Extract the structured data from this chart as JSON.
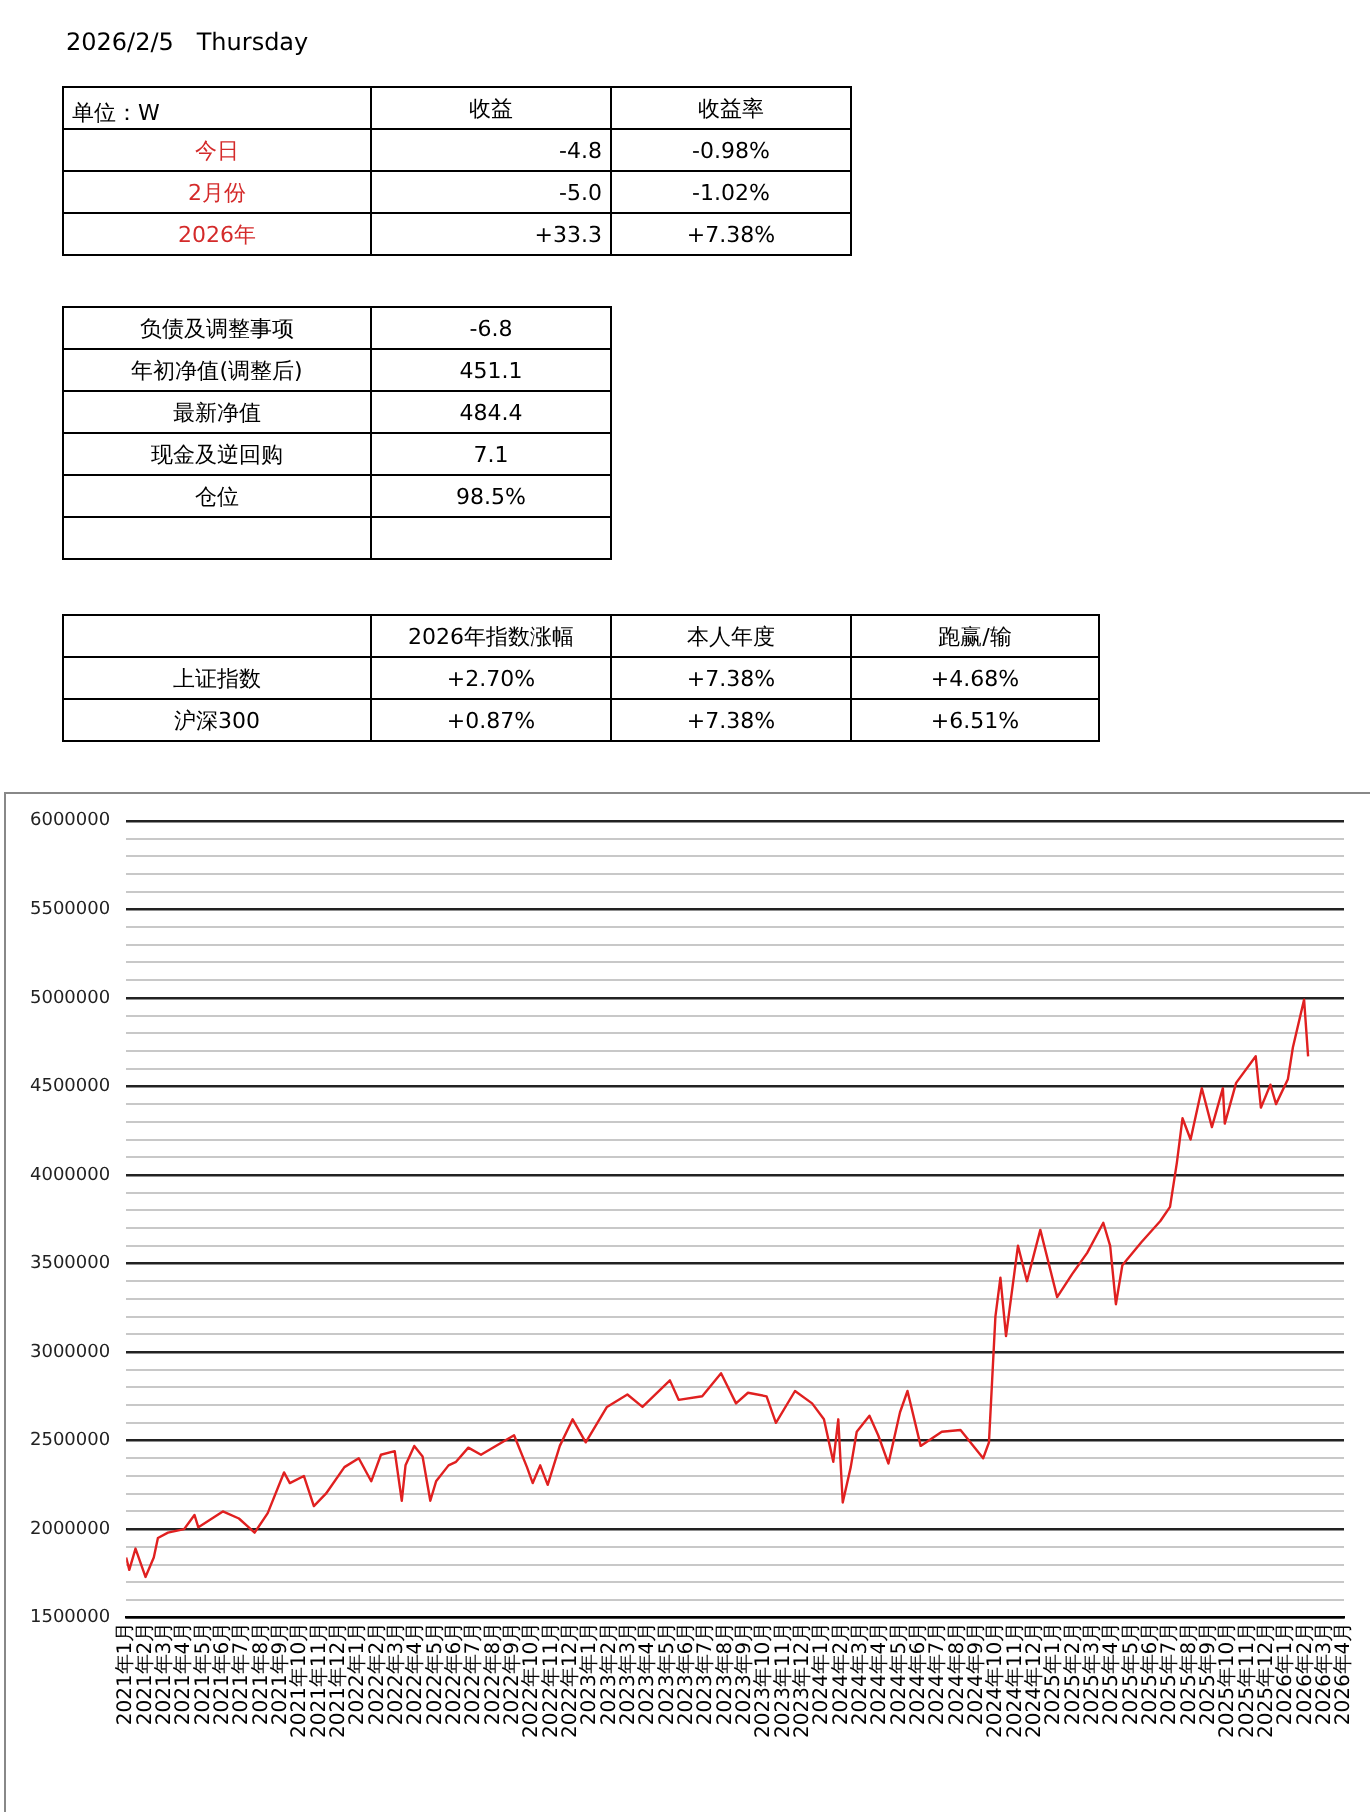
{
  "chart_data": [
    {
      "type": "other",
      "title": "2026/2/5   Thursday",
      "categories": [
        "单位：W",
        "收益",
        "收益率"
      ],
      "y_categories": [
        "今日",
        "2月份",
        "2026年"
      ],
      "color": "#d42a2a",
      "cell_labels": [
        [
          "-4.8",
          "-0.98%"
        ],
        [
          "-5.0",
          "-1.02%"
        ],
        [
          "+33.3",
          "+7.38%"
        ]
      ]
    },
    {
      "type": "other",
      "y_categories": [
        "负债及调整事项",
        "年初净值(调整后)",
        "最新净值",
        "现金及逆回购",
        "仓位",
        null
      ],
      "cell_labels": [
        [
          "-6.8"
        ],
        [
          "451.1"
        ],
        [
          "484.4"
        ],
        [
          "7.1"
        ],
        [
          "98.5%"
        ],
        [
          null
        ]
      ]
    },
    {
      "type": "other",
      "categories": [
        null,
        "2026年指数涨幅",
        "本人年度",
        "跑赢/输"
      ],
      "y_categories": [
        "上证指数",
        "沪深300"
      ],
      "cell_labels": [
        [
          "+2.70%",
          "+7.38%",
          "+4.68%"
        ],
        [
          "+0.87%",
          "+7.38%",
          "+6.51%"
        ]
      ]
    },
    {
      "type": "line",
      "color": "#e02020",
      "grid": "y",
      "legend": false,
      "marker": "none",
      "line_style": "solid",
      "x": [
        "2021-01-01",
        "2021-01-06",
        "2021-01-16",
        "2021-02-01",
        "2021-02-13",
        "2021-02-19",
        "2021-03-06",
        "2021-04-01",
        "2021-04-17",
        "2021-04-23",
        "2021-06-01",
        "2021-06-26",
        "2021-07-21",
        "2021-08-11",
        "2021-09-06",
        "2021-09-15",
        "2021-10-07",
        "2021-10-23",
        "2021-11-11",
        "2021-12-10",
        "2022-01-02",
        "2022-01-22",
        "2022-02-06",
        "2022-02-26",
        "2022-03-09",
        "2022-03-15",
        "2022-03-29",
        "2022-04-11",
        "2022-04-23",
        "2022-05-02",
        "2022-05-22",
        "2022-06-03",
        "2022-06-22",
        "2022-07-12",
        "2022-09-03",
        "2022-09-23",
        "2022-10-02",
        "2022-10-14",
        "2022-10-26",
        "2022-11-14",
        "2022-12-04",
        "2022-12-25",
        "2023-01-28",
        "2023-02-27",
        "2023-03-23",
        "2023-05-05",
        "2023-05-19",
        "2023-06-25",
        "2023-07-25",
        "2023-08-18",
        "2023-09-06",
        "2023-10-05",
        "2023-10-20",
        "2023-11-19",
        "2023-12-16",
        "2024-01-04",
        "2024-01-19",
        "2024-01-27",
        "2024-02-03",
        "2024-02-15",
        "2024-02-24",
        "2024-03-15",
        "2024-03-29",
        "2024-04-14",
        "2024-05-02",
        "2024-05-14",
        "2024-06-04",
        "2024-07-07",
        "2024-08-06",
        "2024-09-11",
        "2024-09-20",
        "2024-09-30",
        "2024-10-08",
        "2024-10-17",
        "2024-11-05",
        "2024-11-19",
        "2024-12-10",
        "2025-01-06",
        "2025-01-30",
        "2025-02-21",
        "2025-03-18",
        "2025-03-29",
        "2025-04-07",
        "2025-04-17",
        "2025-05-17",
        "2025-06-16",
        "2025-07-01",
        "2025-07-12",
        "2025-07-21",
        "2025-08-03",
        "2025-08-21",
        "2025-09-06",
        "2025-09-23",
        "2025-09-26",
        "2025-10-14",
        "2025-11-14",
        "2025-11-22",
        "2025-12-07",
        "2025-12-16",
        "2026-01-04",
        "2026-01-12",
        "2026-01-30",
        "2026-02-05"
      ],
      "values": [
        1840000,
        1770000,
        1890000,
        1730000,
        1840000,
        1950000,
        1980000,
        2000000,
        2080000,
        2010000,
        2100000,
        2060000,
        1980000,
        2090000,
        2320000,
        2260000,
        2300000,
        2130000,
        2200000,
        2350000,
        2400000,
        2270000,
        2420000,
        2440000,
        2160000,
        2360000,
        2470000,
        2410000,
        2160000,
        2270000,
        2360000,
        2380000,
        2460000,
        2420000,
        2530000,
        2350000,
        2260000,
        2360000,
        2250000,
        2470000,
        2620000,
        2490000,
        2690000,
        2760000,
        2690000,
        2840000,
        2730000,
        2750000,
        2880000,
        2710000,
        2770000,
        2750000,
        2600000,
        2780000,
        2710000,
        2620000,
        2380000,
        2620000,
        2150000,
        2350000,
        2550000,
        2640000,
        2530000,
        2370000,
        2660000,
        2780000,
        2470000,
        2550000,
        2560000,
        2400000,
        2490000,
        3200000,
        3420000,
        3090000,
        3600000,
        3400000,
        3690000,
        3310000,
        3440000,
        3560000,
        3730000,
        3600000,
        3270000,
        3490000,
        3620000,
        3740000,
        3820000,
        4070000,
        4320000,
        4200000,
        4490000,
        4270000,
        4490000,
        4290000,
        4520000,
        4670000,
        4380000,
        4510000,
        4400000,
        4540000,
        4720000,
        4990000,
        4670000
      ],
      "xlim": [
        "2021-01-01",
        "2026-04-01"
      ],
      "xticks": [
        {
          "value": "2021-01-01",
          "label": "2021年1月"
        },
        {
          "value": "2021-02-01",
          "label": "2021年2月"
        },
        {
          "value": "2021-03-01",
          "label": "2021年3月"
        },
        {
          "value": "2021-04-01",
          "label": "2021年4月"
        },
        {
          "value": "2021-05-01",
          "label": "2021年5月"
        },
        {
          "value": "2021-06-01",
          "label": "2021年6月"
        },
        {
          "value": "2021-07-01",
          "label": "2021年7月"
        },
        {
          "value": "2021-08-01",
          "label": "2021年8月"
        },
        {
          "value": "2021-09-01",
          "label": "2021年9月"
        },
        {
          "value": "2021-10-01",
          "label": "2021年10月"
        },
        {
          "value": "2021-11-01",
          "label": "2021年11月"
        },
        {
          "value": "2021-12-01",
          "label": "2021年12月"
        },
        {
          "value": "2022-01-01",
          "label": "2022年1月"
        },
        {
          "value": "2022-02-01",
          "label": "2022年2月"
        },
        {
          "value": "2022-03-01",
          "label": "2022年3月"
        },
        {
          "value": "2022-04-01",
          "label": "2022年4月"
        },
        {
          "value": "2022-05-01",
          "label": "2022年5月"
        },
        {
          "value": "2022-06-01",
          "label": "2022年6月"
        },
        {
          "value": "2022-07-01",
          "label": "2022年7月"
        },
        {
          "value": "2022-08-01",
          "label": "2022年8月"
        },
        {
          "value": "2022-09-01",
          "label": "2022年9月"
        },
        {
          "value": "2022-10-01",
          "label": "2022年10月"
        },
        {
          "value": "2022-11-01",
          "label": "2022年11月"
        },
        {
          "value": "2022-12-01",
          "label": "2022年12月"
        },
        {
          "value": "2023-01-01",
          "label": "2023年1月"
        },
        {
          "value": "2023-02-01",
          "label": "2023年2月"
        },
        {
          "value": "2023-03-01",
          "label": "2023年3月"
        },
        {
          "value": "2023-04-01",
          "label": "2023年4月"
        },
        {
          "value": "2023-05-01",
          "label": "2023年5月"
        },
        {
          "value": "2023-06-01",
          "label": "2023年6月"
        },
        {
          "value": "2023-07-01",
          "label": "2023年7月"
        },
        {
          "value": "2023-08-01",
          "label": "2023年8月"
        },
        {
          "value": "2023-09-01",
          "label": "2023年9月"
        },
        {
          "value": "2023-10-01",
          "label": "2023年10月"
        },
        {
          "value": "2023-11-01",
          "label": "2023年11月"
        },
        {
          "value": "2023-12-01",
          "label": "2023年12月"
        },
        {
          "value": "2024-01-01",
          "label": "2024年1月"
        },
        {
          "value": "2024-02-01",
          "label": "2024年2月"
        },
        {
          "value": "2024-03-01",
          "label": "2024年3月"
        },
        {
          "value": "2024-04-01",
          "label": "2024年4月"
        },
        {
          "value": "2024-05-01",
          "label": "2024年5月"
        },
        {
          "value": "2024-06-01",
          "label": "2024年6月"
        },
        {
          "value": "2024-07-01",
          "label": "2024年7月"
        },
        {
          "value": "2024-08-01",
          "label": "2024年8月"
        },
        {
          "value": "2024-09-01",
          "label": "2024年9月"
        },
        {
          "value": "2024-10-01",
          "label": "2024年10月"
        },
        {
          "value": "2024-11-01",
          "label": "2024年11月"
        },
        {
          "value": "2024-12-01",
          "label": "2024年12月"
        },
        {
          "value": "2025-01-01",
          "label": "2025年1月"
        },
        {
          "value": "2025-02-01",
          "label": "2025年2月"
        },
        {
          "value": "2025-03-01",
          "label": "2025年3月"
        },
        {
          "value": "2025-04-01",
          "label": "2025年4月"
        },
        {
          "value": "2025-05-01",
          "label": "2025年5月"
        },
        {
          "value": "2025-06-01",
          "label": "2025年6月"
        },
        {
          "value": "2025-07-01",
          "label": "2025年7月"
        },
        {
          "value": "2025-08-01",
          "label": "2025年8月"
        },
        {
          "value": "2025-09-01",
          "label": "2025年9月"
        },
        {
          "value": "2025-10-01",
          "label": "2025年10月"
        },
        {
          "value": "2025-11-01",
          "label": "2025年11月"
        },
        {
          "value": "2025-12-01",
          "label": "2025年12月"
        },
        {
          "value": "2026-01-01",
          "label": "2026年1月"
        },
        {
          "value": "2026-02-01",
          "label": "2026年2月"
        },
        {
          "value": "2026-03-01",
          "label": "2026年3月"
        },
        {
          "value": "2026-04-01",
          "label": "2026年4月"
        }
      ],
      "ylim": [
        1500000,
        6000000
      ],
      "yticks": [
        1500000,
        {
          "value": 1600000,
          "label": null
        },
        {
          "value": 1700000,
          "label": null
        },
        {
          "value": 1800000,
          "label": null
        },
        {
          "value": 1900000,
          "label": null
        },
        2000000,
        {
          "value": 2100000,
          "label": null
        },
        {
          "value": 2200000,
          "label": null
        },
        {
          "value": 2300000,
          "label": null
        },
        {
          "value": 2400000,
          "label": null
        },
        2500000,
        {
          "value": 2600000,
          "label": null
        },
        {
          "value": 2700000,
          "label": null
        },
        {
          "value": 2800000,
          "label": null
        },
        {
          "value": 2900000,
          "label": null
        },
        3000000,
        {
          "value": 3100000,
          "label": null
        },
        {
          "value": 3200000,
          "label": null
        },
        {
          "value": 3300000,
          "label": null
        },
        {
          "value": 3400000,
          "label": null
        },
        3500000,
        {
          "value": 3600000,
          "label": null
        },
        {
          "value": 3700000,
          "label": null
        },
        {
          "value": 3800000,
          "label": null
        },
        {
          "value": 3900000,
          "label": null
        },
        4000000,
        {
          "value": 4100000,
          "label": null
        },
        {
          "value": 4200000,
          "label": null
        },
        {
          "value": 4300000,
          "label": null
        },
        {
          "value": 4400000,
          "label": null
        },
        4500000,
        {
          "value": 4600000,
          "label": null
        },
        {
          "value": 4700000,
          "label": null
        },
        {
          "value": 4800000,
          "label": null
        },
        {
          "value": 4900000,
          "label": null
        },
        5000000,
        {
          "value": 5100000,
          "label": null
        },
        {
          "value": 5200000,
          "label": null
        },
        {
          "value": 5300000,
          "label": null
        },
        {
          "value": 5400000,
          "label": null
        },
        5500000,
        {
          "value": 5600000,
          "label": null
        },
        {
          "value": 5700000,
          "label": null
        },
        {
          "value": 5800000,
          "label": null
        },
        {
          "value": 5900000,
          "label": null
        },
        6000000
      ]
    }
  ]
}
